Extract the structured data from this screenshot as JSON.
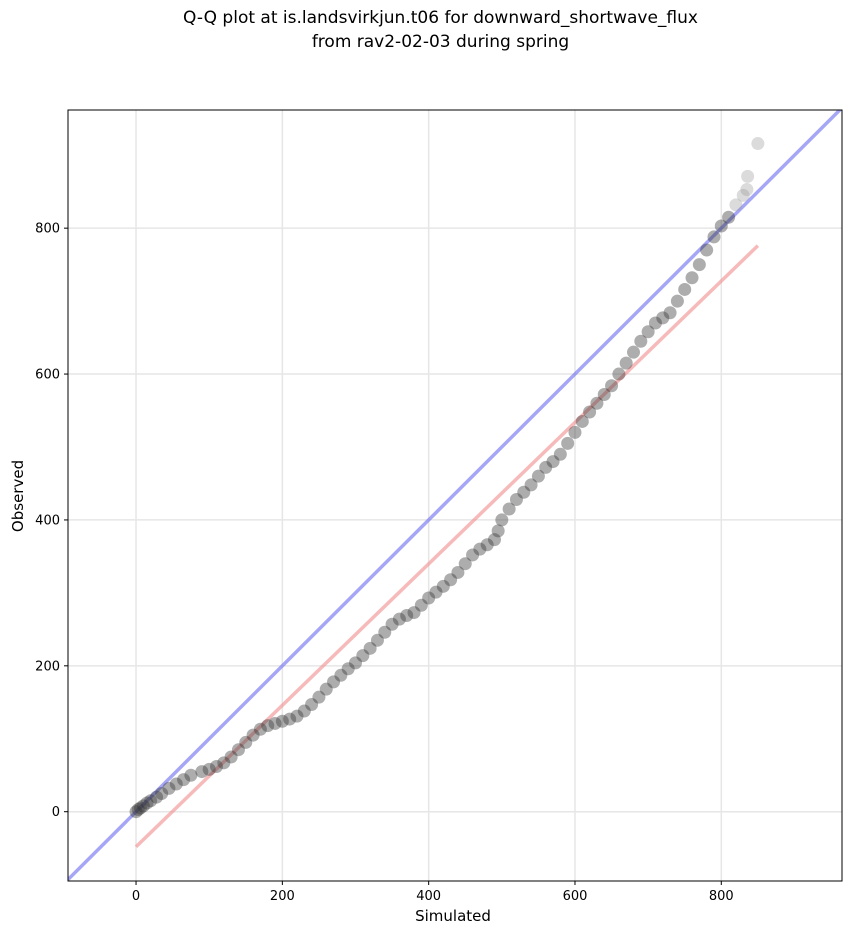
{
  "title_lines": [
    "Q-Q plot at is.landsvirkjun.t06 for downward_shortwave_flux",
    "from rav2-02-03 during spring"
  ],
  "chart_data": {
    "type": "scatter",
    "title": "Q-Q plot at is.landsvirkjun.t06 for downward_shortwave_flux from rav2-02-03 during spring",
    "xlabel": "Simulated",
    "ylabel": "Observed",
    "xlim": [
      -93,
      965
    ],
    "ylim": [
      -95,
      962
    ],
    "xticks": [
      0,
      200,
      400,
      600,
      800
    ],
    "yticks": [
      0,
      200,
      400,
      600,
      800
    ],
    "grid": true,
    "reference_lines": [
      {
        "kind": "1:1",
        "color": "#6b6bf0",
        "points": [
          [
            -93,
            -93
          ],
          [
            965,
            965
          ]
        ]
      },
      {
        "kind": "fit",
        "color": "#f28c8c",
        "points": [
          [
            0,
            -48
          ],
          [
            850,
            776
          ]
        ]
      }
    ],
    "series": [
      {
        "color": "#333333",
        "points": [
          [
            0,
            0
          ],
          [
            3,
            3
          ],
          [
            6,
            5
          ],
          [
            10,
            8
          ],
          [
            15,
            12
          ],
          [
            20,
            15
          ],
          [
            28,
            20
          ],
          [
            35,
            25
          ],
          [
            45,
            32
          ],
          [
            55,
            38
          ],
          [
            65,
            44
          ],
          [
            75,
            50
          ],
          [
            90,
            55
          ],
          [
            100,
            58
          ],
          [
            110,
            62
          ],
          [
            120,
            67
          ],
          [
            130,
            75
          ],
          [
            140,
            85
          ],
          [
            150,
            95
          ],
          [
            160,
            105
          ],
          [
            170,
            113
          ],
          [
            180,
            118
          ],
          [
            190,
            121
          ],
          [
            200,
            124
          ],
          [
            210,
            127
          ],
          [
            220,
            131
          ],
          [
            230,
            138
          ],
          [
            240,
            147
          ],
          [
            250,
            157
          ],
          [
            260,
            168
          ],
          [
            270,
            178
          ],
          [
            280,
            187
          ],
          [
            290,
            196
          ],
          [
            300,
            204
          ],
          [
            310,
            214
          ],
          [
            320,
            224
          ],
          [
            330,
            235
          ],
          [
            340,
            246
          ],
          [
            350,
            257
          ],
          [
            360,
            264
          ],
          [
            370,
            269
          ],
          [
            380,
            273
          ],
          [
            390,
            283
          ],
          [
            400,
            293
          ],
          [
            410,
            301
          ],
          [
            420,
            309
          ],
          [
            430,
            318
          ],
          [
            440,
            328
          ],
          [
            450,
            340
          ],
          [
            460,
            352
          ],
          [
            470,
            360
          ],
          [
            480,
            366
          ],
          [
            490,
            373
          ],
          [
            495,
            385
          ],
          [
            500,
            400
          ],
          [
            510,
            415
          ],
          [
            520,
            428
          ],
          [
            530,
            438
          ],
          [
            540,
            448
          ],
          [
            550,
            460
          ],
          [
            560,
            472
          ],
          [
            570,
            480
          ],
          [
            580,
            490
          ],
          [
            590,
            505
          ],
          [
            600,
            520
          ],
          [
            610,
            535
          ],
          [
            620,
            548
          ],
          [
            630,
            560
          ],
          [
            640,
            572
          ],
          [
            650,
            584
          ],
          [
            660,
            600
          ],
          [
            670,
            615
          ],
          [
            680,
            630
          ],
          [
            690,
            645
          ],
          [
            700,
            658
          ],
          [
            710,
            670
          ],
          [
            720,
            677
          ],
          [
            730,
            684
          ],
          [
            740,
            700
          ],
          [
            750,
            716
          ],
          [
            760,
            732
          ],
          [
            770,
            750
          ],
          [
            780,
            770
          ],
          [
            790,
            788
          ],
          [
            800,
            803
          ],
          [
            810,
            815
          ],
          [
            820,
            832
          ],
          [
            830,
            845
          ],
          [
            835,
            853
          ],
          [
            836,
            871
          ],
          [
            850,
            916
          ]
        ]
      }
    ]
  }
}
